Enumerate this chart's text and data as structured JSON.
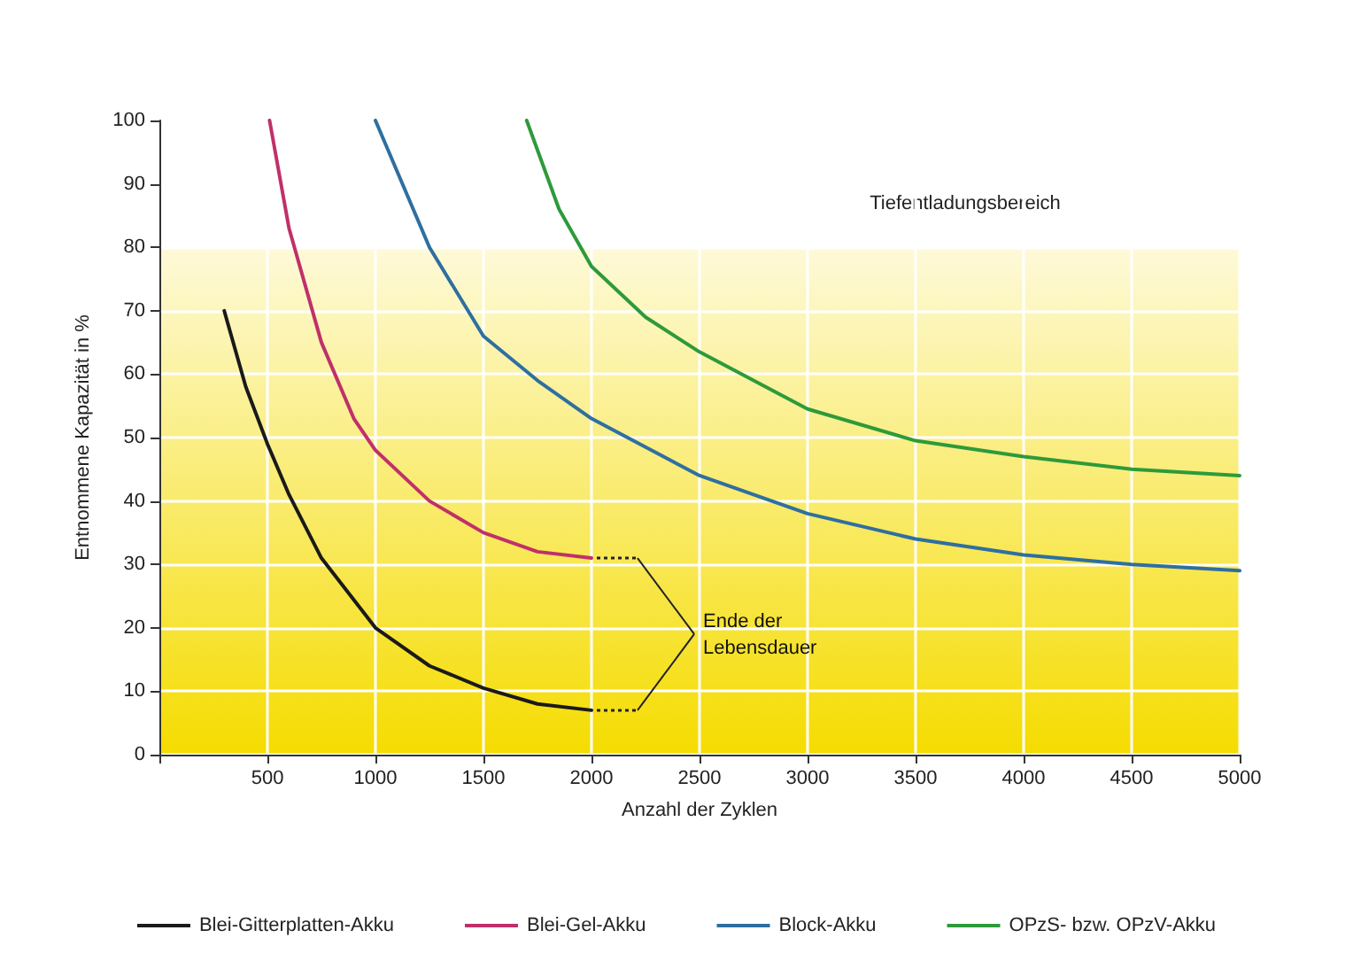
{
  "chart_data": {
    "type": "line",
    "xlabel": "Anzahl der Zyklen",
    "ylabel": "Entnommene Kapazität in %",
    "xlim": [
      0,
      5000
    ],
    "xticks": [
      {
        "value": 0,
        "label": null
      },
      500,
      1000,
      1500,
      2000,
      2500,
      3000,
      3500,
      4000,
      4500,
      5000
    ],
    "ylim": [
      0,
      100
    ],
    "yticks": [
      0,
      10,
      20,
      30,
      40,
      50,
      60,
      70,
      80,
      90,
      100
    ],
    "grid": true,
    "legend": "bottom",
    "marker": "none",
    "line_style": "solid",
    "series": [
      {
        "name": "Blei-Gitterplatten-Akku",
        "color": "#1a1a1a",
        "x": [
          300,
          400,
          500,
          600,
          750,
          1000,
          1250,
          1500,
          1750,
          2000
        ],
        "values": [
          70,
          58,
          49,
          41,
          31,
          20,
          14,
          10.5,
          8,
          7
        ]
      },
      {
        "name": "Blei-Gel-Akku",
        "color": "#c0306a",
        "x": [
          510,
          600,
          750,
          900,
          1000,
          1250,
          1500,
          1750,
          2000
        ],
        "values": [
          100,
          83,
          65,
          53,
          48,
          40,
          35,
          32,
          31
        ]
      },
      {
        "name": "Block-Akku",
        "color": "#2f6fa0",
        "x": [
          1000,
          1250,
          1500,
          1750,
          2000,
          2500,
          3000,
          3500,
          4000,
          4500,
          5000
        ],
        "values": [
          100,
          80,
          66,
          59,
          53,
          44,
          38,
          34,
          31.5,
          30,
          29
        ]
      },
      {
        "name": "OPzS- bzw. OPzV-Akku",
        "color": "#2e9a3a",
        "x": [
          1700,
          1850,
          2000,
          2250,
          2500,
          3000,
          3500,
          4000,
          4500,
          5000
        ],
        "values": [
          100,
          86,
          77,
          69,
          63.5,
          54.5,
          49.5,
          47,
          45,
          44
        ]
      }
    ],
    "bands": [
      {
        "axis": "y",
        "from": 0,
        "to": 80,
        "label": "Tiefentladungsbereich",
        "color": "#f5dc00"
      }
    ],
    "annotations": [
      "Ende der Lebensdauer"
    ]
  }
}
